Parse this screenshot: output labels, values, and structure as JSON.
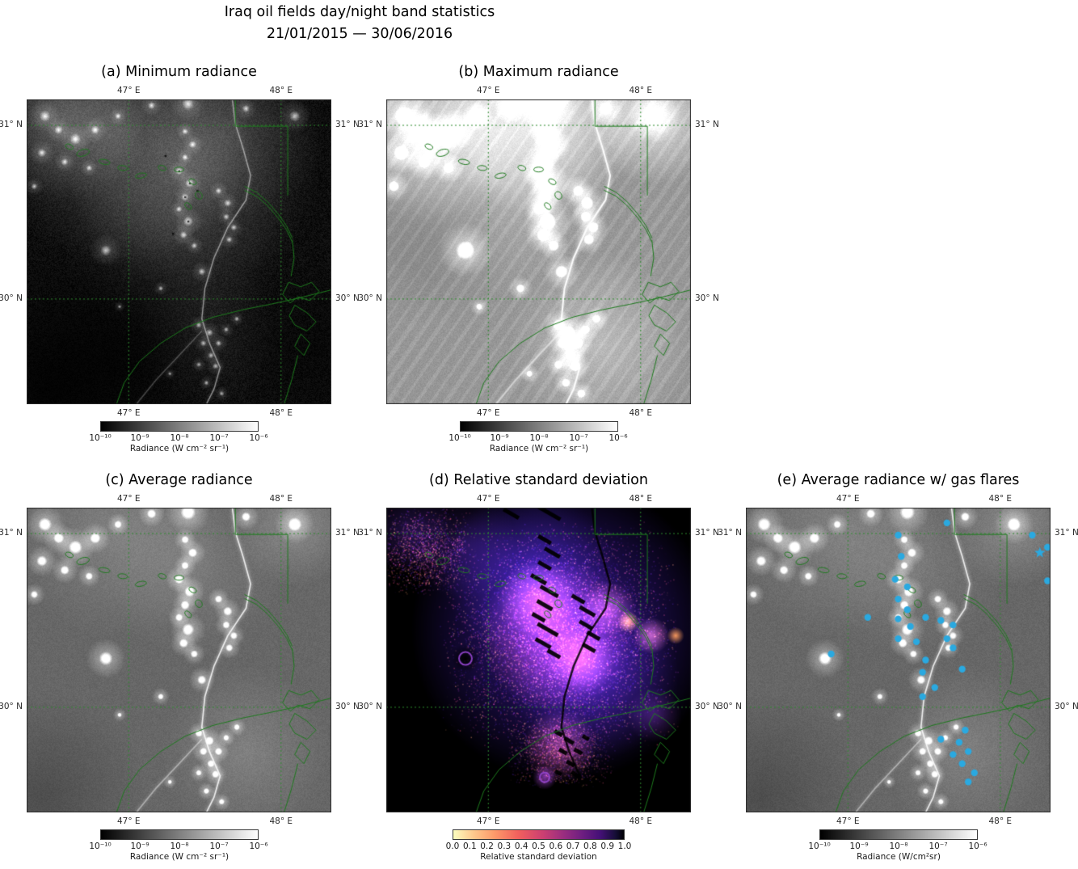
{
  "figure": {
    "title_line1": "Iraq oil fields day/night band statistics",
    "title_line2": "21/01/2015 — 30/06/2016"
  },
  "axis": {
    "lon_ticks": [
      "47° E",
      "48° E"
    ],
    "lat_ticks": [
      "31° N",
      "30° N"
    ]
  },
  "panels": [
    {
      "id": "a",
      "title": "(a) Minimum radiance",
      "style": "min",
      "canvas": "map-a"
    },
    {
      "id": "b",
      "title": "(b) Maximum radiance",
      "style": "max",
      "canvas": "map-b"
    },
    {
      "id": "c",
      "title": "(c) Average radiance",
      "style": "avg",
      "canvas": "map-c"
    },
    {
      "id": "d",
      "title": "(d) Relative standard deviation",
      "style": "rsd",
      "canvas": "map-d"
    },
    {
      "id": "e",
      "title": "(e) Average radiance w/ gas flares",
      "style": "flares",
      "canvas": "map-e"
    }
  ],
  "colorbars": {
    "radiance_gray": {
      "ticks": [
        "10⁻¹⁰",
        "10⁻⁹",
        "10⁻⁸",
        "10⁻⁷",
        "10⁻⁶"
      ],
      "label": "Radiance (W cm⁻² sr⁻¹)"
    },
    "radiance_gray_e": {
      "ticks": [
        "10⁻¹⁰",
        "10⁻⁹",
        "10⁻⁸",
        "10⁻⁷",
        "10⁻⁶"
      ],
      "label": "Radiance (W/cm²sr)"
    },
    "rsd": {
      "ticks": [
        "0.0",
        "0.1",
        "0.2",
        "0.3",
        "0.4",
        "0.5",
        "0.6",
        "0.7",
        "0.8",
        "0.9",
        "1.0"
      ],
      "label": "Relative standard deviation"
    }
  },
  "map_overlay": {
    "boundary_color": "#1d7a1d",
    "grid_color": "#2e8b2e"
  },
  "gas_flares": {
    "marker_color": "#2aa9e0",
    "points": [
      [
        0.5,
        0.09
      ],
      [
        0.66,
        0.05
      ],
      [
        0.94,
        0.09
      ],
      [
        0.99,
        0.13
      ],
      [
        0.51,
        0.16
      ],
      [
        0.49,
        0.235
      ],
      [
        0.53,
        0.26
      ],
      [
        0.5,
        0.3
      ],
      [
        0.53,
        0.335
      ],
      [
        0.5,
        0.365
      ],
      [
        0.54,
        0.39
      ],
      [
        0.4,
        0.36
      ],
      [
        0.59,
        0.36
      ],
      [
        0.64,
        0.37
      ],
      [
        0.68,
        0.385
      ],
      [
        0.28,
        0.48
      ],
      [
        0.5,
        0.43
      ],
      [
        0.56,
        0.44
      ],
      [
        0.66,
        0.43
      ],
      [
        0.68,
        0.46
      ],
      [
        0.59,
        0.5
      ],
      [
        0.58,
        0.54
      ],
      [
        0.71,
        0.53
      ],
      [
        0.62,
        0.59
      ],
      [
        0.58,
        0.62
      ],
      [
        0.99,
        0.24
      ],
      [
        0.72,
        0.73
      ],
      [
        0.7,
        0.77
      ],
      [
        0.73,
        0.8
      ],
      [
        0.68,
        0.81
      ],
      [
        0.71,
        0.84
      ],
      [
        0.75,
        0.87
      ],
      [
        0.73,
        0.9
      ],
      [
        0.64,
        0.76
      ]
    ],
    "star_point": [
      0.965,
      0.148
    ]
  }
}
